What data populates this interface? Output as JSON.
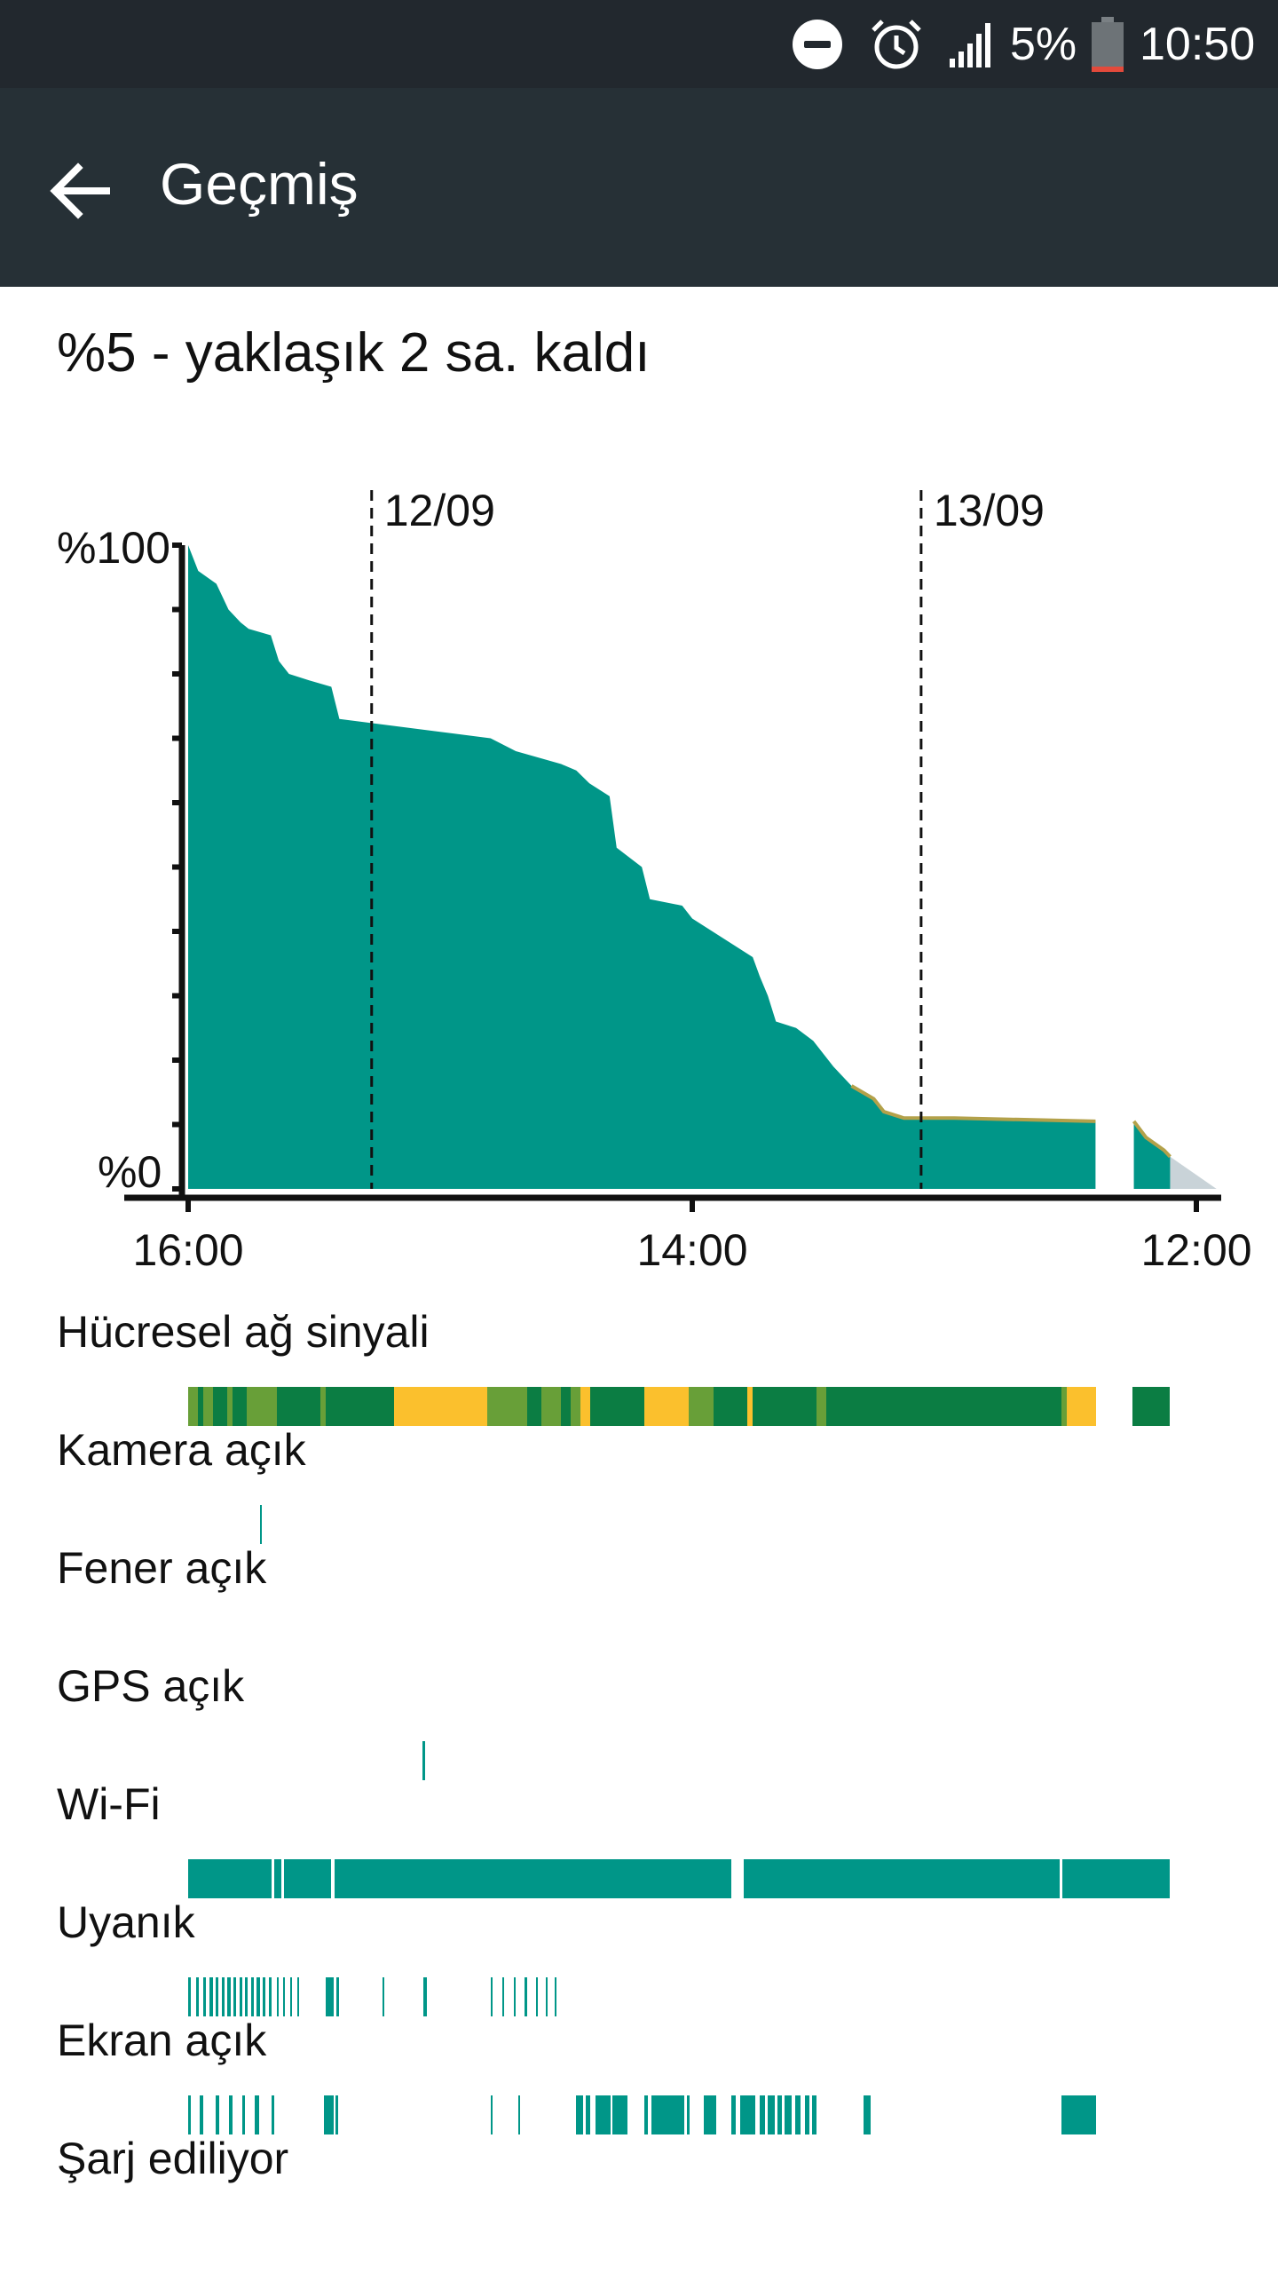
{
  "status_bar": {
    "dnd_icon": "do-not-disturb-icon",
    "alarm_icon": "alarm-icon",
    "signal_icon": "cell-signal-icon",
    "battery_percent": "5%",
    "battery_icon": "battery-low-icon",
    "time": "10:50"
  },
  "app_bar": {
    "back_icon": "arrow-back-icon",
    "title": "Geçmiş"
  },
  "summary": "%5 - yaklaşık 2 sa. kaldı",
  "colors": {
    "teal": "#009688",
    "dark_green": "#0b7d43",
    "green": "#689f38",
    "yellow": "#fbc02d",
    "projection": "#c9d3d8"
  },
  "chart_data": {
    "type": "area",
    "y_label_top": "%100",
    "y_label_bottom": "%0",
    "ylim": [
      0,
      100
    ],
    "x_range": [
      0,
      1000
    ],
    "x_ticks": [
      {
        "x": 0,
        "label": "16:00"
      },
      {
        "x": 500,
        "label": "14:00"
      },
      {
        "x": 1000,
        "label": "12:00"
      }
    ],
    "date_markers": [
      {
        "x": 182,
        "label": "12/09"
      },
      {
        "x": 727,
        "label": "13/09"
      }
    ],
    "series": [
      {
        "values": [
          [
            0,
            100
          ],
          [
            10,
            96
          ],
          [
            28,
            94
          ],
          [
            40,
            90
          ],
          [
            52,
            88
          ],
          [
            60,
            87
          ],
          [
            82,
            86
          ],
          [
            90,
            82
          ],
          [
            100,
            80
          ],
          [
            120,
            79
          ],
          [
            142,
            78
          ],
          [
            150,
            73
          ],
          [
            200,
            72
          ],
          [
            250,
            71
          ],
          [
            300,
            70
          ],
          [
            325,
            68
          ],
          [
            370,
            66
          ],
          [
            385,
            65
          ],
          [
            398,
            63
          ],
          [
            408,
            62
          ],
          [
            418,
            61
          ],
          [
            425,
            53
          ],
          [
            450,
            50
          ],
          [
            458,
            45
          ],
          [
            490,
            44
          ],
          [
            500,
            42
          ],
          [
            530,
            39
          ],
          [
            560,
            36
          ],
          [
            567,
            33
          ],
          [
            575,
            30
          ],
          [
            583,
            26
          ],
          [
            603,
            25
          ],
          [
            620,
            23
          ],
          [
            640,
            19
          ],
          [
            658,
            16
          ],
          [
            680,
            14
          ],
          [
            690,
            12
          ],
          [
            710,
            11
          ],
          [
            760,
            11
          ],
          [
            900,
            10.5
          ]
        ]
      },
      {
        "values": [
          [
            938,
            10.5
          ],
          [
            950,
            8
          ],
          [
            968,
            6
          ],
          [
            974,
            5
          ]
        ]
      }
    ],
    "projection": [
      [
        974,
        5
      ],
      [
        1020,
        0
      ]
    ]
  },
  "rows": [
    {
      "label": "Hücresel ağ sinyali",
      "segments": [
        {
          "s": 0,
          "e": 0.01,
          "c": "green"
        },
        {
          "s": 0.01,
          "e": 0.015,
          "c": "dark_green"
        },
        {
          "s": 0.015,
          "e": 0.025,
          "c": "green"
        },
        {
          "s": 0.025,
          "e": 0.04,
          "c": "dark_green"
        },
        {
          "s": 0.04,
          "e": 0.045,
          "c": "green"
        },
        {
          "s": 0.045,
          "e": 0.06,
          "c": "dark_green"
        },
        {
          "s": 0.06,
          "e": 0.09,
          "c": "green"
        },
        {
          "s": 0.09,
          "e": 0.135,
          "c": "dark_green"
        },
        {
          "s": 0.135,
          "e": 0.14,
          "c": "green"
        },
        {
          "s": 0.14,
          "e": 0.21,
          "c": "dark_green"
        },
        {
          "s": 0.21,
          "e": 0.305,
          "c": "yellow"
        },
        {
          "s": 0.305,
          "e": 0.345,
          "c": "green"
        },
        {
          "s": 0.345,
          "e": 0.36,
          "c": "dark_green"
        },
        {
          "s": 0.36,
          "e": 0.38,
          "c": "green"
        },
        {
          "s": 0.38,
          "e": 0.39,
          "c": "dark_green"
        },
        {
          "s": 0.39,
          "e": 0.4,
          "c": "green"
        },
        {
          "s": 0.4,
          "e": 0.41,
          "c": "yellow"
        },
        {
          "s": 0.41,
          "e": 0.42,
          "c": "dark_green"
        },
        {
          "s": 0.42,
          "e": 0.465,
          "c": "dark_green"
        },
        {
          "s": 0.465,
          "e": 0.47,
          "c": "yellow"
        },
        {
          "s": 0.47,
          "e": 0.51,
          "c": "yellow"
        },
        {
          "s": 0.51,
          "e": 0.535,
          "c": "green"
        },
        {
          "s": 0.535,
          "e": 0.57,
          "c": "dark_green"
        },
        {
          "s": 0.57,
          "e": 0.575,
          "c": "yellow"
        },
        {
          "s": 0.575,
          "e": 0.64,
          "c": "dark_green"
        },
        {
          "s": 0.64,
          "e": 0.65,
          "c": "green"
        },
        {
          "s": 0.65,
          "e": 0.89,
          "c": "dark_green"
        },
        {
          "s": 0.89,
          "e": 0.895,
          "c": "green"
        },
        {
          "s": 0.895,
          "e": 0.925,
          "c": "yellow"
        },
        {
          "s": 0.962,
          "e": 1.0,
          "c": "dark_green"
        }
      ]
    },
    {
      "label": "Kamera açık",
      "segments": [
        {
          "s": 0.073,
          "e": 0.075,
          "c": "teal"
        }
      ]
    },
    {
      "label": "Fener açık",
      "segments": []
    },
    {
      "label": "GPS açık",
      "segments": [
        {
          "s": 0.239,
          "e": 0.241,
          "c": "teal"
        }
      ]
    },
    {
      "label": "Wi-Fi",
      "segments": [
        {
          "s": 0,
          "e": 0.085,
          "c": "teal"
        },
        {
          "s": 0.088,
          "e": 0.095,
          "c": "teal"
        },
        {
          "s": 0.098,
          "e": 0.146,
          "c": "teal"
        },
        {
          "s": 0.149,
          "e": 0.553,
          "c": "teal"
        },
        {
          "s": 0.566,
          "e": 0.888,
          "c": "teal"
        },
        {
          "s": 0.891,
          "e": 1.0,
          "c": "teal"
        }
      ]
    },
    {
      "label": "Uyanık",
      "segments": [
        {
          "s": 0.0,
          "e": 0.003,
          "c": "teal"
        },
        {
          "s": 0.008,
          "e": 0.011,
          "c": "teal"
        },
        {
          "s": 0.015,
          "e": 0.018,
          "c": "teal"
        },
        {
          "s": 0.022,
          "e": 0.025,
          "c": "teal"
        },
        {
          "s": 0.028,
          "e": 0.031,
          "c": "teal"
        },
        {
          "s": 0.034,
          "e": 0.037,
          "c": "teal"
        },
        {
          "s": 0.04,
          "e": 0.043,
          "c": "teal"
        },
        {
          "s": 0.046,
          "e": 0.049,
          "c": "teal"
        },
        {
          "s": 0.052,
          "e": 0.055,
          "c": "teal"
        },
        {
          "s": 0.058,
          "e": 0.061,
          "c": "teal"
        },
        {
          "s": 0.064,
          "e": 0.067,
          "c": "teal"
        },
        {
          "s": 0.07,
          "e": 0.073,
          "c": "teal"
        },
        {
          "s": 0.076,
          "e": 0.079,
          "c": "teal"
        },
        {
          "s": 0.082,
          "e": 0.085,
          "c": "teal"
        },
        {
          "s": 0.09,
          "e": 0.092,
          "c": "teal"
        },
        {
          "s": 0.097,
          "e": 0.099,
          "c": "teal"
        },
        {
          "s": 0.104,
          "e": 0.106,
          "c": "teal"
        },
        {
          "s": 0.111,
          "e": 0.113,
          "c": "teal"
        },
        {
          "s": 0.14,
          "e": 0.148,
          "c": "teal"
        },
        {
          "s": 0.151,
          "e": 0.154,
          "c": "teal"
        },
        {
          "s": 0.198,
          "e": 0.2,
          "c": "teal"
        },
        {
          "s": 0.24,
          "e": 0.243,
          "c": "teal"
        },
        {
          "s": 0.308,
          "e": 0.31,
          "c": "teal"
        },
        {
          "s": 0.32,
          "e": 0.322,
          "c": "teal"
        },
        {
          "s": 0.332,
          "e": 0.334,
          "c": "teal"
        },
        {
          "s": 0.343,
          "e": 0.345,
          "c": "teal"
        },
        {
          "s": 0.354,
          "e": 0.356,
          "c": "teal"
        },
        {
          "s": 0.364,
          "e": 0.366,
          "c": "teal"
        },
        {
          "s": 0.373,
          "e": 0.375,
          "c": "teal"
        }
      ]
    },
    {
      "label": "Ekran açık",
      "segments": [
        {
          "s": 0.0,
          "e": 0.003,
          "c": "teal"
        },
        {
          "s": 0.012,
          "e": 0.015,
          "c": "teal"
        },
        {
          "s": 0.028,
          "e": 0.032,
          "c": "teal"
        },
        {
          "s": 0.042,
          "e": 0.045,
          "c": "teal"
        },
        {
          "s": 0.055,
          "e": 0.058,
          "c": "teal"
        },
        {
          "s": 0.068,
          "e": 0.072,
          "c": "teal"
        },
        {
          "s": 0.085,
          "e": 0.088,
          "c": "teal"
        },
        {
          "s": 0.138,
          "e": 0.148,
          "c": "teal"
        },
        {
          "s": 0.15,
          "e": 0.153,
          "c": "teal"
        },
        {
          "s": 0.308,
          "e": 0.31,
          "c": "teal"
        },
        {
          "s": 0.336,
          "e": 0.338,
          "c": "teal"
        },
        {
          "s": 0.395,
          "e": 0.402,
          "c": "teal"
        },
        {
          "s": 0.405,
          "e": 0.41,
          "c": "teal"
        },
        {
          "s": 0.415,
          "e": 0.43,
          "c": "teal"
        },
        {
          "s": 0.432,
          "e": 0.448,
          "c": "teal"
        },
        {
          "s": 0.465,
          "e": 0.468,
          "c": "teal"
        },
        {
          "s": 0.472,
          "e": 0.505,
          "c": "teal"
        },
        {
          "s": 0.508,
          "e": 0.511,
          "c": "teal"
        },
        {
          "s": 0.525,
          "e": 0.538,
          "c": "teal"
        },
        {
          "s": 0.553,
          "e": 0.558,
          "c": "teal"
        },
        {
          "s": 0.562,
          "e": 0.578,
          "c": "teal"
        },
        {
          "s": 0.582,
          "e": 0.588,
          "c": "teal"
        },
        {
          "s": 0.59,
          "e": 0.598,
          "c": "teal"
        },
        {
          "s": 0.6,
          "e": 0.605,
          "c": "teal"
        },
        {
          "s": 0.608,
          "e": 0.615,
          "c": "teal"
        },
        {
          "s": 0.618,
          "e": 0.624,
          "c": "teal"
        },
        {
          "s": 0.628,
          "e": 0.633,
          "c": "teal"
        },
        {
          "s": 0.636,
          "e": 0.64,
          "c": "teal"
        },
        {
          "s": 0.688,
          "e": 0.695,
          "c": "teal"
        },
        {
          "s": 0.89,
          "e": 0.925,
          "c": "teal"
        }
      ]
    },
    {
      "label": "Şarj ediliyor",
      "segments": []
    }
  ]
}
